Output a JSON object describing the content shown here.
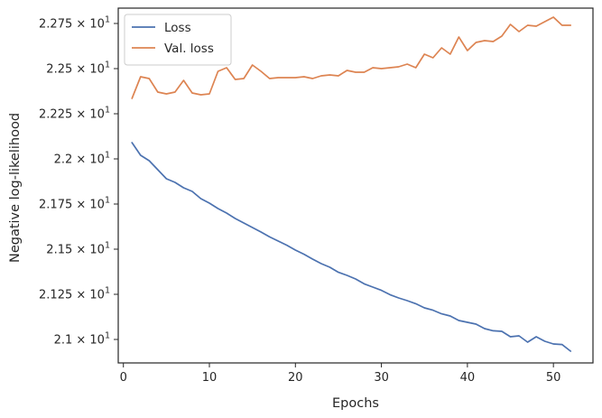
{
  "chart_data": {
    "type": "line",
    "xlabel": "Epochs",
    "ylabel": "Negative log-likelihood",
    "xlim": [
      -0.6,
      54.6
    ],
    "ylim": [
      20.87,
      22.835
    ],
    "x_ticks": [
      0,
      10,
      20,
      30,
      40,
      50
    ],
    "y_ticks": [
      21.0,
      21.25,
      21.5,
      21.75,
      22.0,
      22.25,
      22.5,
      22.75
    ],
    "y_tick_labels": [
      {
        "mantissa": "2.1",
        "exp": "1"
      },
      {
        "mantissa": "2.125",
        "exp": "1"
      },
      {
        "mantissa": "2.15",
        "exp": "1"
      },
      {
        "mantissa": "2.175",
        "exp": "1"
      },
      {
        "mantissa": "2.2",
        "exp": "1"
      },
      {
        "mantissa": "2.225",
        "exp": "1"
      },
      {
        "mantissa": "2.25",
        "exp": "1"
      },
      {
        "mantissa": "2.275",
        "exp": "1"
      }
    ],
    "y_tick_base": "10",
    "legend_position": "top-left",
    "grid": false,
    "x": [
      1,
      2,
      3,
      4,
      5,
      6,
      7,
      8,
      9,
      10,
      11,
      12,
      13,
      14,
      15,
      16,
      17,
      18,
      19,
      20,
      21,
      22,
      23,
      24,
      25,
      26,
      27,
      28,
      29,
      30,
      31,
      32,
      33,
      34,
      35,
      36,
      37,
      38,
      39,
      40,
      41,
      42,
      43,
      44,
      45,
      46,
      47,
      48,
      49,
      50,
      51,
      52
    ],
    "series": [
      {
        "name": "Loss",
        "color": "#4c72b0",
        "values": [
          22.09,
          22.02,
          21.99,
          21.94,
          21.89,
          21.87,
          21.84,
          21.82,
          21.78,
          21.755,
          21.725,
          21.7,
          21.67,
          21.645,
          21.62,
          21.595,
          21.568,
          21.545,
          21.522,
          21.495,
          21.472,
          21.445,
          21.42,
          21.4,
          21.372,
          21.355,
          21.335,
          21.308,
          21.29,
          21.272,
          21.248,
          21.23,
          21.215,
          21.198,
          21.175,
          21.162,
          21.142,
          21.13,
          21.105,
          21.095,
          21.085,
          21.06,
          21.048,
          21.045,
          21.015,
          21.02,
          20.985,
          21.015,
          20.99,
          20.975,
          20.972,
          20.935
        ]
      },
      {
        "name": "Val. loss",
        "color": "#dd8452",
        "values": [
          22.335,
          22.455,
          22.445,
          22.37,
          22.36,
          22.37,
          22.435,
          22.365,
          22.355,
          22.36,
          22.485,
          22.505,
          22.44,
          22.445,
          22.52,
          22.485,
          22.445,
          22.45,
          22.45,
          22.45,
          22.455,
          22.445,
          22.46,
          22.465,
          22.46,
          22.49,
          22.48,
          22.48,
          22.505,
          22.5,
          22.505,
          22.51,
          22.525,
          22.505,
          22.58,
          22.56,
          22.615,
          22.58,
          22.675,
          22.6,
          22.645,
          22.655,
          22.65,
          22.68,
          22.745,
          22.705,
          22.74,
          22.735,
          22.76,
          22.785,
          22.74,
          22.74
        ]
      }
    ]
  }
}
